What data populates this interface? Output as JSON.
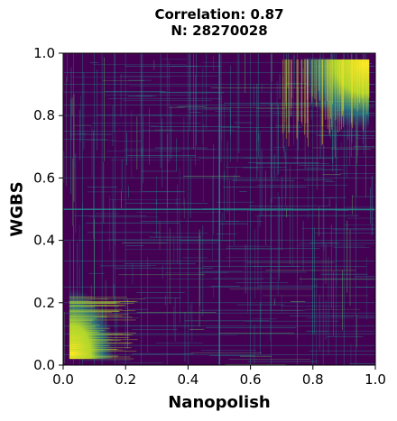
{
  "chart_data": {
    "type": "heatmap",
    "title_lines": [
      "Correlation: 0.87",
      "N: 28270028"
    ],
    "xlabel": "Nanopolish",
    "ylabel": "WGBS",
    "xlim": [
      0.0,
      1.0
    ],
    "ylim": [
      0.0,
      1.0
    ],
    "xticks": [
      "0.0",
      "0.2",
      "0.4",
      "0.6",
      "0.8",
      "1.0"
    ],
    "yticks": [
      "0.0",
      "0.2",
      "0.4",
      "0.6",
      "0.8",
      "1.0"
    ],
    "colormap": "viridis",
    "colors": {
      "low": "#440154",
      "mid": "#21918c",
      "high": "#fde725"
    },
    "grid": false,
    "dense_regions": [
      {
        "x": [
          0.02,
          0.2
        ],
        "y": [
          0.02,
          0.3
        ],
        "density": "very high"
      },
      {
        "x": [
          0.7,
          0.98
        ],
        "y": [
          0.7,
          0.98
        ],
        "density": "very high"
      }
    ],
    "stripe_values": [
      0.0,
      0.0333,
      0.0625,
      0.1,
      0.125,
      0.1667,
      0.2,
      0.25,
      0.3333,
      0.4,
      0.5,
      0.6,
      0.6667,
      0.75,
      0.8,
      0.8333,
      0.875,
      0.9,
      0.9375,
      1.0
    ]
  }
}
